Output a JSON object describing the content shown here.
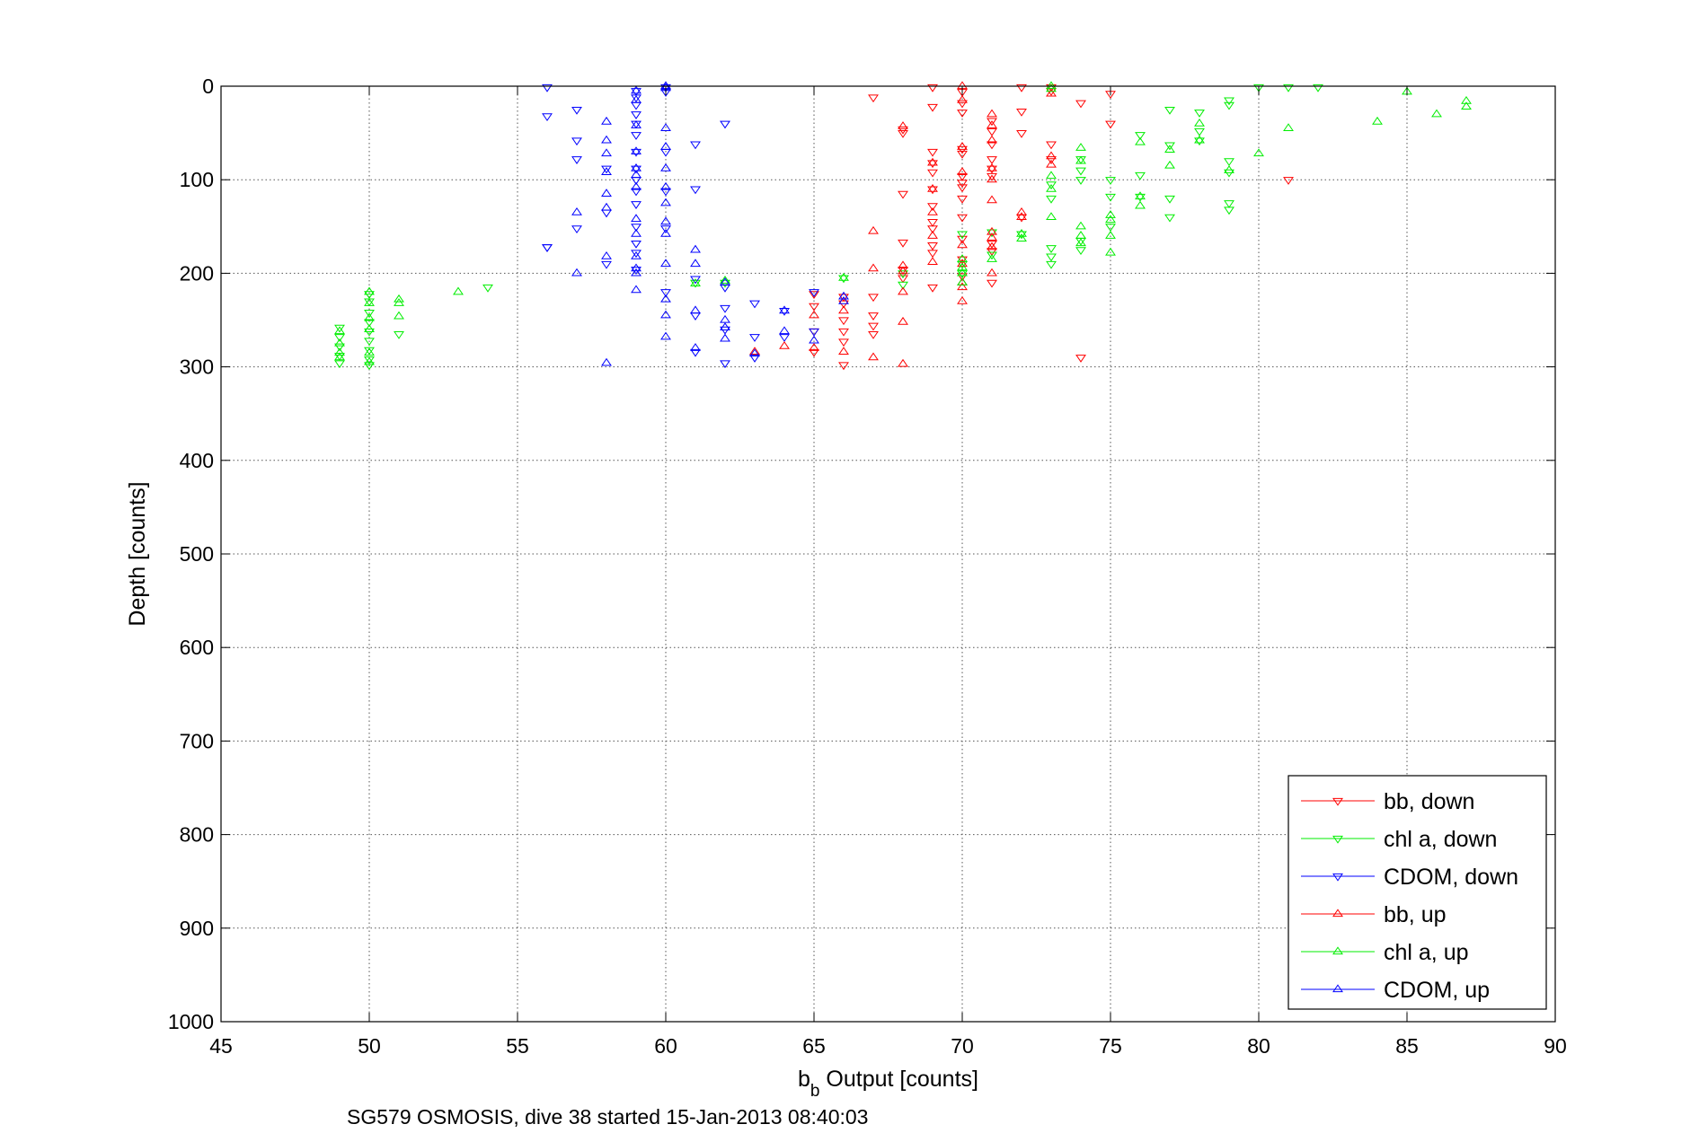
{
  "chart_data": {
    "type": "scatter",
    "title": "",
    "xlabel_main": "b",
    "xlabel_sub": "b",
    "xlabel_rest": " Output [counts]",
    "ylabel": "Depth [counts]",
    "caption": "SG579 OSMOSIS, dive 38 started 15-Jan-2013 08:40:03",
    "xlim": [
      45,
      90
    ],
    "ylim": [
      0,
      1000
    ],
    "y_reversed": true,
    "grid": true,
    "legend_position": "bottom-right",
    "xticks": [
      "45",
      "50",
      "55",
      "60",
      "65",
      "70",
      "75",
      "80",
      "85",
      "90"
    ],
    "yticks": [
      "0",
      "100",
      "200",
      "300",
      "400",
      "500",
      "600",
      "700",
      "800",
      "900",
      "1000"
    ],
    "series": [
      {
        "name": "bb, down",
        "color": "#ff0000",
        "marker": "triangle-down",
        "points": [
          [
            67,
            12
          ],
          [
            69,
            1
          ],
          [
            69,
            22
          ],
          [
            70,
            6
          ],
          [
            70,
            18
          ],
          [
            70,
            28
          ],
          [
            72,
            1
          ],
          [
            72,
            27
          ],
          [
            72,
            50
          ],
          [
            73,
            1
          ],
          [
            73,
            5
          ],
          [
            74,
            18
          ],
          [
            75,
            8
          ],
          [
            75,
            40
          ],
          [
            68,
            46
          ],
          [
            68,
            50
          ],
          [
            69,
            70
          ],
          [
            69,
            82
          ],
          [
            69,
            92
          ],
          [
            70,
            67
          ],
          [
            70,
            72
          ],
          [
            70,
            96
          ],
          [
            70,
            103
          ],
          [
            70,
            108
          ],
          [
            70,
            120
          ],
          [
            71,
            37
          ],
          [
            71,
            48
          ],
          [
            71,
            62
          ],
          [
            71,
            78
          ],
          [
            71,
            88
          ],
          [
            71,
            96
          ],
          [
            72,
            140
          ],
          [
            73,
            62
          ],
          [
            73,
            78
          ],
          [
            68,
            115
          ],
          [
            68,
            167
          ],
          [
            69,
            110
          ],
          [
            69,
            128
          ],
          [
            69,
            145
          ],
          [
            69,
            152
          ],
          [
            69,
            170
          ],
          [
            69,
            178
          ],
          [
            70,
            140
          ],
          [
            70,
            163
          ],
          [
            70,
            185
          ],
          [
            70,
            203
          ],
          [
            71,
            168
          ],
          [
            71,
            176
          ],
          [
            71,
            210
          ],
          [
            68,
            196
          ],
          [
            68,
            205
          ],
          [
            69,
            215
          ],
          [
            67,
            225
          ],
          [
            67,
            245
          ],
          [
            67,
            256
          ],
          [
            67,
            265
          ],
          [
            66,
            225
          ],
          [
            66,
            232
          ],
          [
            66,
            250
          ],
          [
            66,
            262
          ],
          [
            66,
            273
          ],
          [
            66,
            298
          ],
          [
            65,
            222
          ],
          [
            65,
            235
          ],
          [
            65,
            262
          ],
          [
            65,
            284
          ],
          [
            74,
            290
          ],
          [
            81,
            100
          ]
        ]
      },
      {
        "name": "chl a, down",
        "color": "#00ee00",
        "marker": "triangle-down",
        "points": [
          [
            80,
            1
          ],
          [
            81,
            1
          ],
          [
            82,
            1
          ],
          [
            79,
            15
          ],
          [
            79,
            20
          ],
          [
            78,
            28
          ],
          [
            78,
            48
          ],
          [
            77,
            25
          ],
          [
            77,
            63
          ],
          [
            76,
            52
          ],
          [
            76,
            95
          ],
          [
            77,
            120
          ],
          [
            77,
            140
          ],
          [
            78,
            58
          ],
          [
            79,
            80
          ],
          [
            79,
            92
          ],
          [
            79,
            125
          ],
          [
            79,
            132
          ],
          [
            74,
            90
          ],
          [
            74,
            78
          ],
          [
            74,
            100
          ],
          [
            73,
            120
          ],
          [
            73,
            105
          ],
          [
            73,
            190
          ],
          [
            72,
            158
          ],
          [
            71,
            156
          ],
          [
            71,
            180
          ],
          [
            70,
            158
          ],
          [
            70,
            190
          ],
          [
            70,
            200
          ],
          [
            75,
            118
          ],
          [
            75,
            100
          ],
          [
            75,
            150
          ],
          [
            76,
            118
          ],
          [
            74,
            165
          ],
          [
            74,
            175
          ],
          [
            73,
            173
          ],
          [
            73,
            182
          ],
          [
            68,
            200
          ],
          [
            68,
            212
          ],
          [
            66,
            205
          ],
          [
            62,
            210
          ],
          [
            61,
            210
          ],
          [
            54,
            215
          ],
          [
            51,
            265
          ],
          [
            50,
            222
          ],
          [
            50,
            230
          ],
          [
            50,
            242
          ],
          [
            50,
            252
          ],
          [
            50,
            262
          ],
          [
            50,
            272
          ],
          [
            50,
            282
          ],
          [
            50,
            292
          ],
          [
            50,
            298
          ],
          [
            49,
            258
          ],
          [
            49,
            268
          ],
          [
            49,
            278
          ],
          [
            49,
            288
          ],
          [
            49,
            296
          ]
        ]
      },
      {
        "name": "CDOM, down",
        "color": "#0000ff",
        "marker": "triangle-down",
        "points": [
          [
            56,
            1
          ],
          [
            56,
            32
          ],
          [
            57,
            25
          ],
          [
            57,
            58
          ],
          [
            57,
            78
          ],
          [
            58,
            88
          ],
          [
            58,
            135
          ],
          [
            58,
            190
          ],
          [
            59,
            5
          ],
          [
            59,
            12
          ],
          [
            59,
            20
          ],
          [
            59,
            30
          ],
          [
            59,
            40
          ],
          [
            59,
            52
          ],
          [
            59,
            70
          ],
          [
            59,
            88
          ],
          [
            59,
            100
          ],
          [
            59,
            112
          ],
          [
            59,
            126
          ],
          [
            59,
            150
          ],
          [
            59,
            168
          ],
          [
            59,
            178
          ],
          [
            59,
            196
          ],
          [
            60,
            1
          ],
          [
            60,
            6
          ],
          [
            60,
            70
          ],
          [
            60,
            112
          ],
          [
            60,
            152
          ],
          [
            60,
            220
          ],
          [
            61,
            62
          ],
          [
            61,
            110
          ],
          [
            61,
            206
          ],
          [
            61,
            245
          ],
          [
            61,
            284
          ],
          [
            62,
            40
          ],
          [
            62,
            215
          ],
          [
            62,
            237
          ],
          [
            62,
            260
          ],
          [
            62,
            296
          ],
          [
            63,
            232
          ],
          [
            63,
            268
          ],
          [
            63,
            290
          ],
          [
            64,
            240
          ],
          [
            64,
            268
          ],
          [
            65,
            220
          ],
          [
            65,
            262
          ],
          [
            56,
            172
          ],
          [
            57,
            152
          ],
          [
            56,
            172
          ]
        ]
      },
      {
        "name": "bb, up",
        "color": "#ff0000",
        "marker": "triangle-up",
        "points": [
          [
            70,
            0
          ],
          [
            70,
            15
          ],
          [
            70,
            65
          ],
          [
            70,
            92
          ],
          [
            70,
            230
          ],
          [
            71,
            30
          ],
          [
            71,
            42
          ],
          [
            71,
            58
          ],
          [
            71,
            88
          ],
          [
            71,
            100
          ],
          [
            71,
            122
          ],
          [
            71,
            156
          ],
          [
            71,
            162
          ],
          [
            71,
            172
          ],
          [
            71,
            200
          ],
          [
            72,
            135
          ],
          [
            72,
            140
          ],
          [
            73,
            8
          ],
          [
            73,
            75
          ],
          [
            73,
            84
          ],
          [
            69,
            188
          ],
          [
            69,
            160
          ],
          [
            69,
            135
          ],
          [
            69,
            110
          ],
          [
            69,
            82
          ],
          [
            70,
            170
          ],
          [
            70,
            210
          ],
          [
            70,
            215
          ],
          [
            70,
            190
          ],
          [
            68,
            43
          ],
          [
            68,
            252
          ],
          [
            68,
            220
          ],
          [
            67,
            155
          ],
          [
            67,
            195
          ],
          [
            67,
            290
          ],
          [
            68,
            297
          ],
          [
            66,
            240
          ],
          [
            66,
            284
          ],
          [
            65,
            245
          ],
          [
            65,
            280
          ],
          [
            64,
            278
          ],
          [
            63,
            284
          ],
          [
            68,
            192
          ],
          [
            68,
            198
          ]
        ]
      },
      {
        "name": "chl a, up",
        "color": "#00ee00",
        "marker": "triangle-up",
        "points": [
          [
            85,
            6
          ],
          [
            86,
            30
          ],
          [
            87,
            16
          ],
          [
            87,
            22
          ],
          [
            84,
            38
          ],
          [
            81,
            45
          ],
          [
            80,
            72
          ],
          [
            79,
            90
          ],
          [
            78,
            40
          ],
          [
            78,
            58
          ],
          [
            77,
            85
          ],
          [
            77,
            68
          ],
          [
            76,
            60
          ],
          [
            76,
            118
          ],
          [
            76,
            128
          ],
          [
            75,
            138
          ],
          [
            75,
            143
          ],
          [
            75,
            160
          ],
          [
            75,
            178
          ],
          [
            74,
            66
          ],
          [
            74,
            80
          ],
          [
            74,
            150
          ],
          [
            74,
            160
          ],
          [
            74,
            168
          ],
          [
            73,
            96
          ],
          [
            73,
            110
          ],
          [
            73,
            140
          ],
          [
            72,
            163
          ],
          [
            72,
            158
          ],
          [
            71,
            185
          ],
          [
            70,
            185
          ],
          [
            70,
            194
          ],
          [
            70,
            200
          ],
          [
            70,
            210
          ],
          [
            73,
            0
          ],
          [
            73,
            3
          ],
          [
            66,
            205
          ],
          [
            62,
            208
          ],
          [
            61,
            211
          ],
          [
            53,
            220
          ],
          [
            51,
            228
          ],
          [
            51,
            232
          ],
          [
            51,
            246
          ],
          [
            50,
            220
          ],
          [
            50,
            232
          ],
          [
            50,
            248
          ],
          [
            50,
            260
          ],
          [
            50,
            285
          ],
          [
            50,
            295
          ],
          [
            49,
            262
          ],
          [
            49,
            275
          ],
          [
            49,
            285
          ],
          [
            49,
            290
          ]
        ]
      },
      {
        "name": "CDOM, up",
        "color": "#0000ff",
        "marker": "triangle-up",
        "points": [
          [
            58,
            38
          ],
          [
            58,
            58
          ],
          [
            58,
            72
          ],
          [
            58,
            92
          ],
          [
            58,
            115
          ],
          [
            58,
            130
          ],
          [
            58,
            182
          ],
          [
            58,
            296
          ],
          [
            57,
            135
          ],
          [
            57,
            200
          ],
          [
            59,
            5
          ],
          [
            59,
            15
          ],
          [
            59,
            42
          ],
          [
            59,
            70
          ],
          [
            59,
            88
          ],
          [
            59,
            95
          ],
          [
            59,
            108
          ],
          [
            59,
            142
          ],
          [
            59,
            158
          ],
          [
            59,
            182
          ],
          [
            59,
            200
          ],
          [
            59,
            218
          ],
          [
            60,
            2
          ],
          [
            60,
            45
          ],
          [
            60,
            65
          ],
          [
            60,
            88
          ],
          [
            60,
            125
          ],
          [
            60,
            145
          ],
          [
            60,
            158
          ],
          [
            60,
            190
          ],
          [
            60,
            228
          ],
          [
            60,
            245
          ],
          [
            60,
            268
          ],
          [
            61,
            175
          ],
          [
            61,
            190
          ],
          [
            61,
            240
          ],
          [
            61,
            280
          ],
          [
            62,
            210
          ],
          [
            62,
            250
          ],
          [
            62,
            270
          ],
          [
            62,
            258
          ],
          [
            63,
            286
          ],
          [
            64,
            240
          ],
          [
            64,
            262
          ],
          [
            65,
            272
          ],
          [
            66,
            225
          ],
          [
            66,
            230
          ],
          [
            59,
            195
          ],
          [
            60,
            0
          ],
          [
            60,
            108
          ]
        ]
      }
    ]
  }
}
